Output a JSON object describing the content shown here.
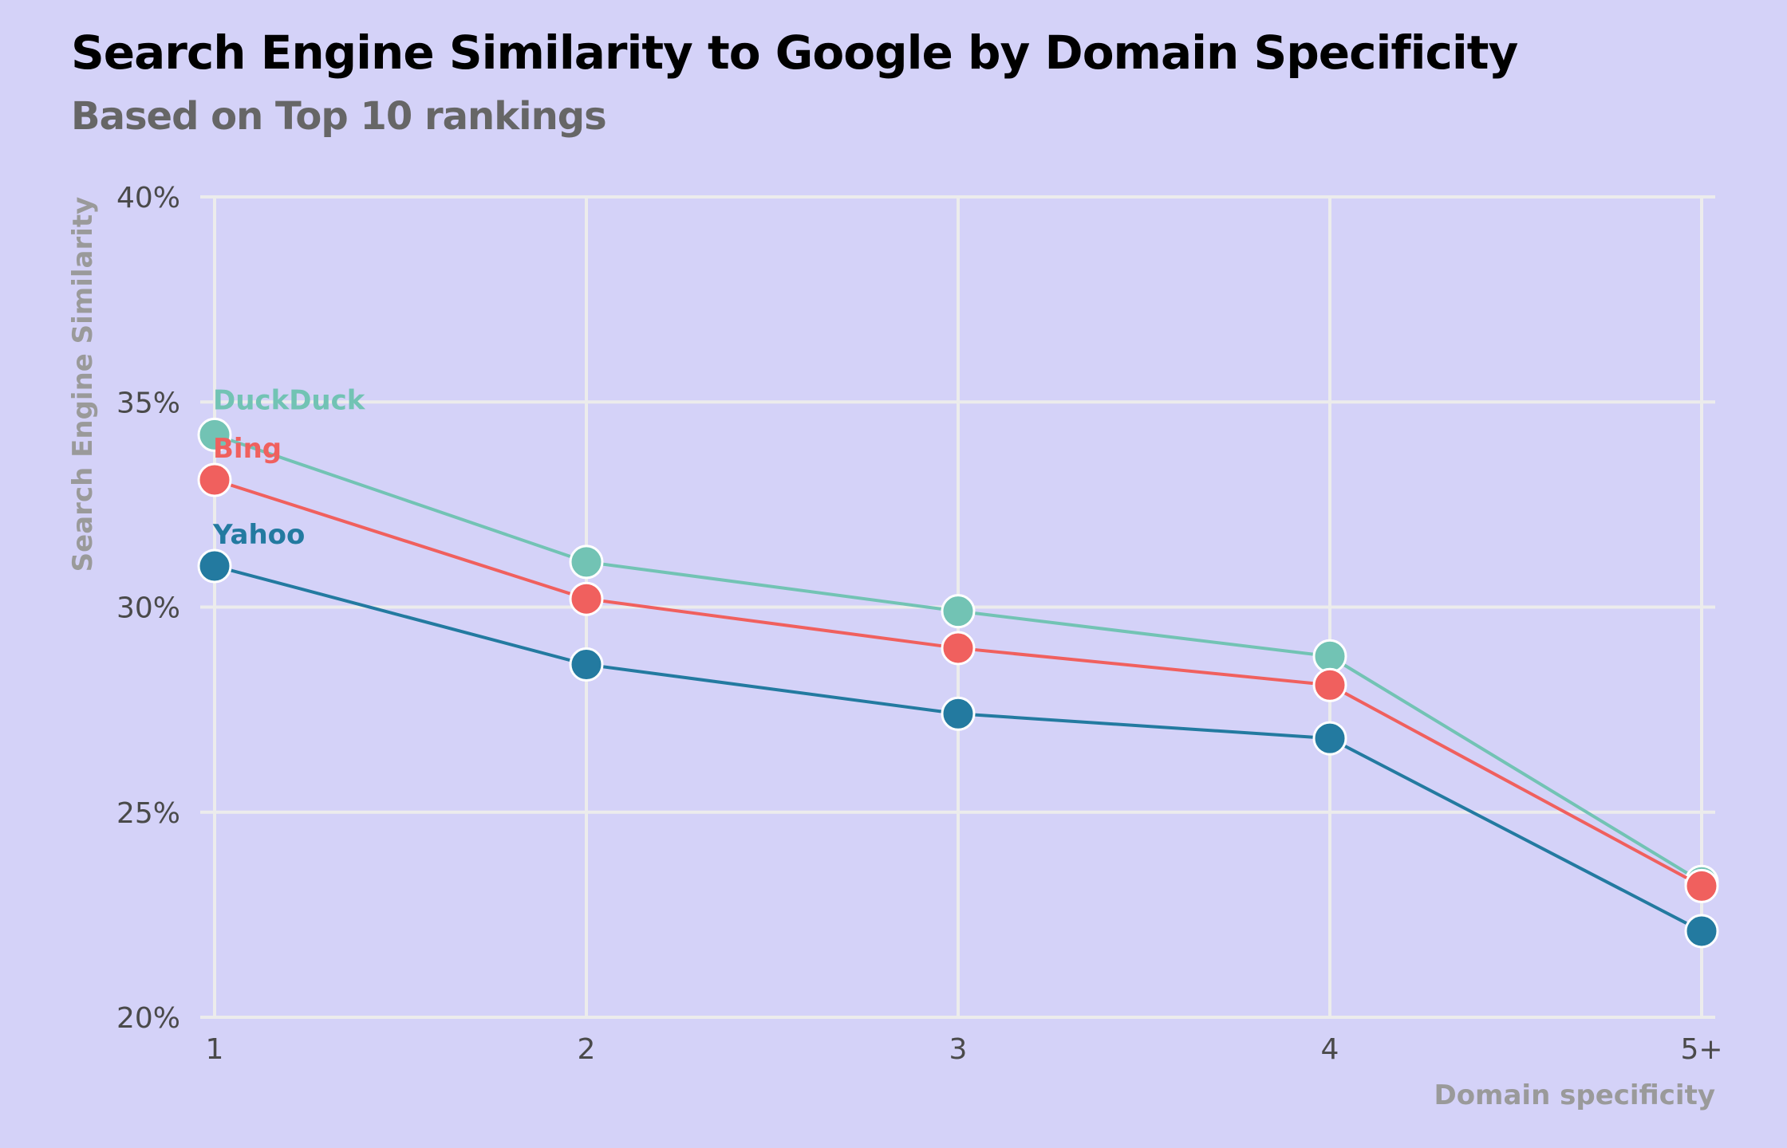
{
  "header": {
    "title": "Search Engine Similarity to Google by Domain Specificity",
    "subtitle": "Based on Top 10 rankings"
  },
  "chart_data": {
    "type": "line",
    "title": "Search Engine Similarity to Google by Domain Specificity",
    "subtitle": "Based on Top 10 rankings",
    "xlabel": "Domain specificity",
    "ylabel": "Search Engine Similarity",
    "categories": [
      "1",
      "2",
      "3",
      "4",
      "5+"
    ],
    "ylim": [
      20,
      40
    ],
    "yticks": [
      20,
      25,
      30,
      35,
      40
    ],
    "ytick_labels": [
      "20%",
      "25%",
      "30%",
      "35%",
      "40%"
    ],
    "grid": true,
    "legend": "direct labels at first point",
    "series": [
      {
        "name": "DuckDuck",
        "color": "#72c3b4",
        "values": [
          34.2,
          31.1,
          29.9,
          28.8,
          23.3
        ]
      },
      {
        "name": "Bing",
        "color": "#f0605e",
        "values": [
          33.1,
          30.2,
          29.0,
          28.1,
          23.2
        ]
      },
      {
        "name": "Yahoo",
        "color": "#237aa0",
        "values": [
          31.0,
          28.6,
          27.4,
          26.8,
          22.1
        ]
      }
    ]
  }
}
